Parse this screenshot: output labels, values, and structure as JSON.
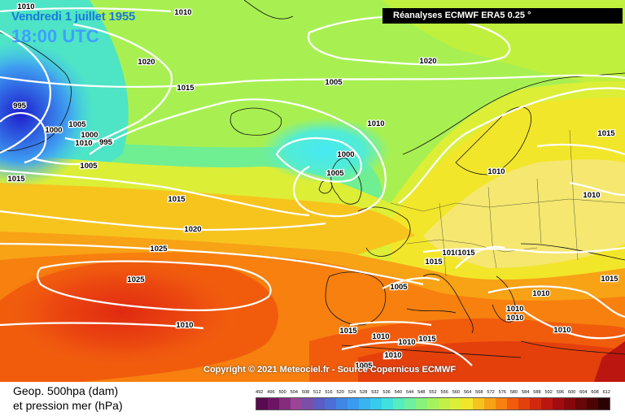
{
  "header": {
    "date": "Vendredi 1 juillet 1955",
    "time": "18:00 UTC",
    "source": "Réanalyses ECMWF ERA5 0.25 °"
  },
  "copyright": "Copyright © 2021 Meteociel.fr - Source Copernicus ECMWF",
  "legend": {
    "line1": "Geop. 500hpa (dam)",
    "line2": "et pression mer (hPa)",
    "scale_values": [
      "492",
      "496",
      "500",
      "504",
      "508",
      "512",
      "516",
      "520",
      "524",
      "528",
      "532",
      "536",
      "540",
      "544",
      "548",
      "552",
      "556",
      "560",
      "564",
      "568",
      "572",
      "576",
      "580",
      "584",
      "588",
      "592",
      "596",
      "600",
      "604",
      "608",
      "612"
    ],
    "scale_colors": [
      "#5a0a4e",
      "#6e1465",
      "#852c7d",
      "#9a4596",
      "#7a4fa8",
      "#5c5cc2",
      "#4b6fd6",
      "#3f86e6",
      "#3a9cf0",
      "#39b4f0",
      "#36ccec",
      "#40e0dc",
      "#55ecc0",
      "#6ef0a0",
      "#88f27c",
      "#a4f25e",
      "#c2f046",
      "#dcee36",
      "#f2e62a",
      "#f6c41e",
      "#f8a216",
      "#f7800f",
      "#f15c0c",
      "#e4400c",
      "#d2280e",
      "#bc1610",
      "#a20c0e",
      "#86080c",
      "#680608",
      "#4c0404",
      "#2a0202"
    ]
  },
  "pressure_labels": [
    {
      "text": "1010"
    },
    {
      "text": "1010"
    },
    {
      "text": "1020"
    },
    {
      "text": "1015"
    },
    {
      "text": "995"
    },
    {
      "text": "1000"
    },
    {
      "text": "1005"
    },
    {
      "text": "1000"
    },
    {
      "text": "1010"
    },
    {
      "text": "995"
    },
    {
      "text": "1005"
    },
    {
      "text": "1015"
    },
    {
      "text": "1010"
    },
    {
      "text": "1000"
    },
    {
      "text": "1005"
    },
    {
      "text": "1020"
    },
    {
      "text": "1005"
    },
    {
      "text": "1015"
    },
    {
      "text": "1020"
    },
    {
      "text": "1025"
    },
    {
      "text": "1025"
    },
    {
      "text": "1010"
    },
    {
      "text": "1010"
    },
    {
      "text": "1015"
    },
    {
      "text": "1010"
    },
    {
      "text": "1015"
    },
    {
      "text": "1010"
    },
    {
      "text": "1015"
    },
    {
      "text": "1005"
    },
    {
      "text": "1010"
    },
    {
      "text": "1010"
    },
    {
      "text": "1010"
    },
    {
      "text": "1015"
    },
    {
      "text": "1010"
    },
    {
      "text": "1005"
    },
    {
      "text": "1005"
    },
    {
      "text": "1010"
    },
    {
      "text": "1015"
    },
    {
      "text": "1010"
    },
    {
      "text": "1010"
    },
    {
      "text": "1015"
    }
  ]
}
